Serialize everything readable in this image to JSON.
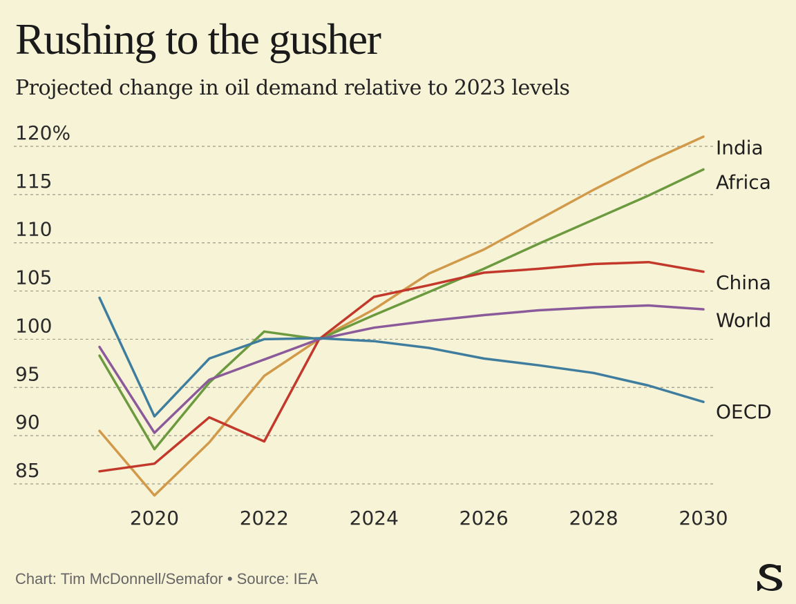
{
  "header": {
    "title": "Rushing to the gusher",
    "subtitle": "Projected change in oil demand relative to 2023 levels"
  },
  "footer": {
    "credit": "Chart: Tim McDonnell/Semafor • Source: IEA"
  },
  "logo": {
    "icon": "semafor-s-logo",
    "letter": "S"
  },
  "chart_data": {
    "type": "line",
    "title": "Rushing to the gusher",
    "subtitle": "Projected change in oil demand relative to 2023 levels",
    "xlabel": "",
    "ylabel": "",
    "x": [
      2019,
      2020,
      2021,
      2022,
      2023,
      2024,
      2025,
      2026,
      2027,
      2028,
      2029,
      2030
    ],
    "x_ticks": [
      2020,
      2022,
      2024,
      2026,
      2028,
      2030
    ],
    "y_ticks": [
      85,
      90,
      95,
      100,
      105,
      110,
      115,
      120
    ],
    "y_tick_labels": [
      "85",
      "90",
      "95",
      "100",
      "105",
      "110",
      "115",
      "120%"
    ],
    "xlim": [
      2019,
      2030
    ],
    "ylim": [
      83,
      122
    ],
    "grid": "horizontal dashed",
    "legend": "direct labels at line ends",
    "series": [
      {
        "name": "India",
        "color": "#d19a4a",
        "values": [
          90.5,
          83.8,
          89.3,
          96.2,
          100,
          103.1,
          106.8,
          109.3,
          112.4,
          115.5,
          118.4,
          121.0
        ]
      },
      {
        "name": "Africa",
        "color": "#6c9a3e",
        "values": [
          98.3,
          88.6,
          95.5,
          100.8,
          100,
          102.5,
          104.9,
          107.3,
          109.9,
          112.4,
          114.9,
          117.6
        ]
      },
      {
        "name": "China",
        "color": "#c2392b",
        "values": [
          86.3,
          87.1,
          91.9,
          89.4,
          100,
          104.4,
          105.6,
          106.9,
          107.3,
          107.8,
          108.0,
          107.0
        ]
      },
      {
        "name": "World",
        "color": "#8b5a9a",
        "values": [
          99.2,
          90.3,
          95.8,
          97.9,
          100,
          101.2,
          101.9,
          102.5,
          103.0,
          103.3,
          103.5,
          103.1
        ]
      },
      {
        "name": "OECD",
        "color": "#3f7d9e",
        "values": [
          104.3,
          92.0,
          98.0,
          100.0,
          100.1,
          99.8,
          99.1,
          98.0,
          97.3,
          96.5,
          95.2,
          93.5
        ]
      }
    ],
    "label_y": {
      "India": 119.9,
      "Africa": 116.3,
      "China": 105.9,
      "World": 102.0,
      "OECD": 92.5
    }
  }
}
